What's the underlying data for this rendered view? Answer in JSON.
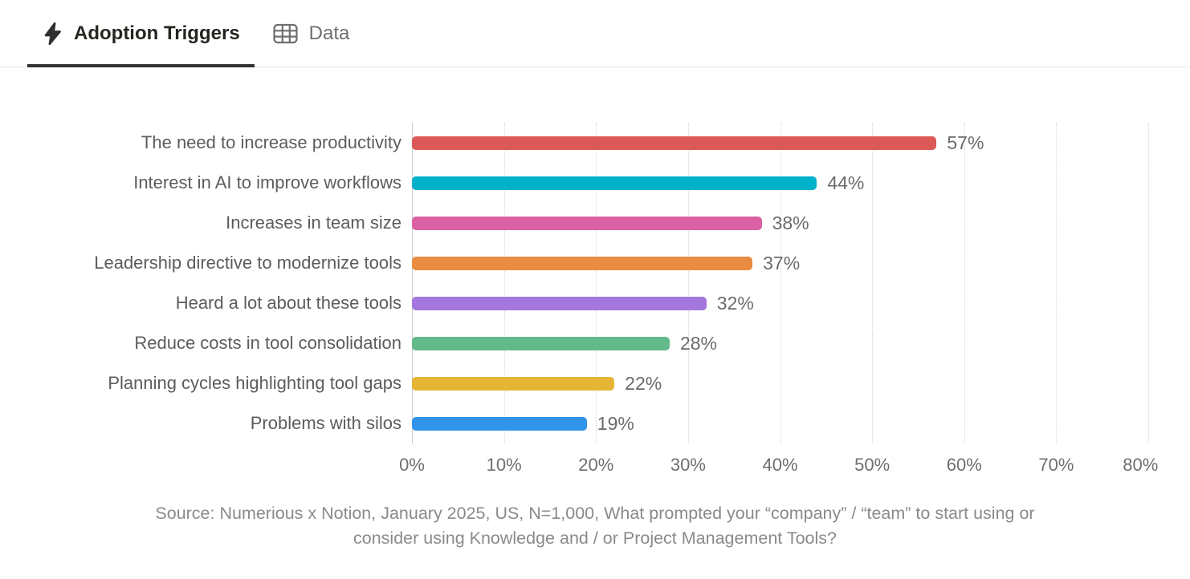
{
  "tabs": [
    {
      "label": "Adoption Triggers",
      "icon": "lightning-bolt-icon",
      "active": true
    },
    {
      "label": "Data",
      "icon": "data-table-icon",
      "active": false
    }
  ],
  "colors": {
    "active_tab_text": "#26251f",
    "inactive_tab_text": "#6f6f6f",
    "active_tab_underline": "#33322f",
    "tab_border": "#e8e8e6",
    "category_label_text": "#5c5c5c",
    "value_label_text": "#6b6b6b",
    "tick_label_text": "#6f6f6f",
    "gridline": "#d5d5d5",
    "source_text": "#8a8a8a"
  },
  "chart_data": {
    "type": "bar",
    "orientation": "horizontal",
    "title": "",
    "categories": [
      "The need to increase productivity",
      "Interest in AI to improve workflows",
      "Increases in team size",
      "Leadership directive to modernize tools",
      "Heard a lot about these tools",
      "Reduce costs in tool consolidation",
      "Planning cycles highlighting tool gaps",
      "Problems with silos"
    ],
    "values": [
      57,
      44,
      38,
      37,
      32,
      28,
      22,
      19
    ],
    "value_suffix": "%",
    "bar_colors": [
      "#db5957",
      "#00b1cb",
      "#db61a4",
      "#e98b40",
      "#a377db",
      "#62b98a",
      "#e5b636",
      "#3194ea"
    ],
    "xlim": [
      0,
      80
    ],
    "x_ticks": [
      "0%",
      "10%",
      "20%",
      "30%",
      "40%",
      "50%",
      "60%",
      "70%",
      "80%"
    ],
    "grid": "dotted-vertical",
    "legend": "none"
  },
  "source": {
    "line1": "Source: Numerious x Notion, January 2025, US, N=1,000, What prompted your “company” / “team” to start using or",
    "line2": "consider using Knowledge and / or Project Management Tools?"
  }
}
